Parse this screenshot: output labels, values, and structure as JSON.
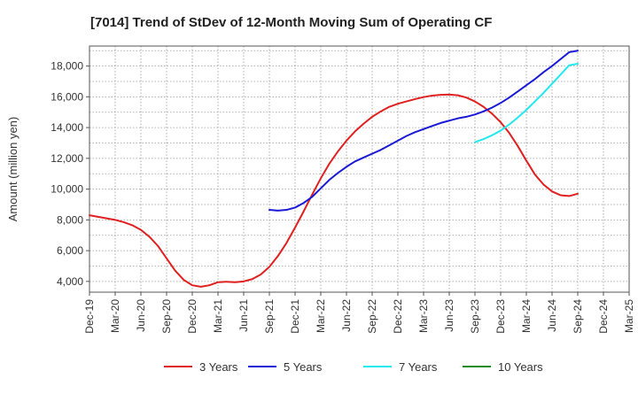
{
  "chart_data": {
    "type": "line",
    "title": "[7014]  Trend of StDev of 12-Month Moving Sum of Operating CF",
    "ylabel": "Amount (million yen)",
    "xlabel": "",
    "ylim": [
      3300,
      19300
    ],
    "yticks": [
      4000,
      6000,
      8000,
      10000,
      12000,
      14000,
      16000,
      18000
    ],
    "ytick_labels": [
      "4,000",
      "6,000",
      "8,000",
      "10,000",
      "12,000",
      "14,000",
      "16,000",
      "18,000"
    ],
    "xticks": [
      "Dec-19",
      "Mar-20",
      "Jun-20",
      "Sep-20",
      "Dec-20",
      "Mar-21",
      "Jun-21",
      "Sep-21",
      "Dec-21",
      "Mar-22",
      "Jun-22",
      "Sep-22",
      "Dec-22",
      "Mar-23",
      "Jun-23",
      "Sep-23",
      "Dec-23",
      "Mar-24",
      "Jun-24",
      "Sep-24",
      "Dec-24",
      "Mar-25"
    ],
    "x_end_label": "Mar-25",
    "grid": true,
    "legend_position": "bottom",
    "series": [
      {
        "name": "3 Years",
        "color": "#e02020",
        "points": [
          [
            "Dec-19",
            8300
          ],
          [
            "Jan-20",
            8200
          ],
          [
            "Feb-20",
            8100
          ],
          [
            "Mar-20",
            8000
          ],
          [
            "Apr-20",
            7850
          ],
          [
            "May-20",
            7650
          ],
          [
            "Jun-20",
            7350
          ],
          [
            "Jul-20",
            6900
          ],
          [
            "Aug-20",
            6300
          ],
          [
            "Sep-20",
            5500
          ],
          [
            "Oct-20",
            4700
          ],
          [
            "Nov-20",
            4100
          ],
          [
            "Dec-20",
            3750
          ],
          [
            "Jan-21",
            3650
          ],
          [
            "Feb-21",
            3750
          ],
          [
            "Mar-21",
            3950
          ],
          [
            "Apr-21",
            3980
          ],
          [
            "May-21",
            3950
          ],
          [
            "Jun-21",
            4000
          ],
          [
            "Jul-21",
            4150
          ],
          [
            "Aug-21",
            4450
          ],
          [
            "Sep-21",
            4950
          ],
          [
            "Oct-21",
            5650
          ],
          [
            "Nov-21",
            6500
          ],
          [
            "Dec-21",
            7500
          ],
          [
            "Jan-22",
            8550
          ],
          [
            "Feb-22",
            9650
          ],
          [
            "Mar-22",
            10700
          ],
          [
            "Apr-22",
            11650
          ],
          [
            "May-22",
            12450
          ],
          [
            "Jun-22",
            13150
          ],
          [
            "Jul-22",
            13750
          ],
          [
            "Aug-22",
            14250
          ],
          [
            "Sep-22",
            14700
          ],
          [
            "Oct-22",
            15050
          ],
          [
            "Nov-22",
            15350
          ],
          [
            "Dec-22",
            15550
          ],
          [
            "Jan-23",
            15700
          ],
          [
            "Feb-23",
            15850
          ],
          [
            "Mar-23",
            15980
          ],
          [
            "Apr-23",
            16080
          ],
          [
            "May-23",
            16130
          ],
          [
            "Jun-23",
            16150
          ],
          [
            "Jul-23",
            16100
          ],
          [
            "Aug-23",
            15950
          ],
          [
            "Sep-23",
            15700
          ],
          [
            "Oct-23",
            15350
          ],
          [
            "Nov-23",
            14900
          ],
          [
            "Dec-23",
            14350
          ],
          [
            "Jan-24",
            13650
          ],
          [
            "Feb-24",
            12800
          ],
          [
            "Mar-24",
            11850
          ],
          [
            "Apr-24",
            10950
          ],
          [
            "May-24",
            10300
          ],
          [
            "Jun-24",
            9850
          ],
          [
            "Jul-24",
            9600
          ],
          [
            "Aug-24",
            9550
          ],
          [
            "Sep-24",
            9700
          ]
        ]
      },
      {
        "name": "5 Years",
        "color": "#1a1ad6",
        "points": [
          [
            "Sep-21",
            8650
          ],
          [
            "Oct-21",
            8600
          ],
          [
            "Nov-21",
            8650
          ],
          [
            "Dec-21",
            8800
          ],
          [
            "Jan-22",
            9100
          ],
          [
            "Feb-22",
            9500
          ],
          [
            "Mar-22",
            10050
          ],
          [
            "Apr-22",
            10600
          ],
          [
            "May-22",
            11050
          ],
          [
            "Jun-22",
            11450
          ],
          [
            "Jul-22",
            11800
          ],
          [
            "Aug-22",
            12050
          ],
          [
            "Sep-22",
            12300
          ],
          [
            "Oct-22",
            12550
          ],
          [
            "Nov-22",
            12850
          ],
          [
            "Dec-22",
            13150
          ],
          [
            "Jan-23",
            13450
          ],
          [
            "Feb-23",
            13700
          ],
          [
            "Mar-23",
            13900
          ],
          [
            "Apr-23",
            14100
          ],
          [
            "May-23",
            14300
          ],
          [
            "Jun-23",
            14450
          ],
          [
            "Jul-23",
            14600
          ],
          [
            "Aug-23",
            14700
          ],
          [
            "Sep-23",
            14850
          ],
          [
            "Oct-23",
            15050
          ],
          [
            "Nov-23",
            15300
          ],
          [
            "Dec-23",
            15600
          ],
          [
            "Jan-24",
            15950
          ],
          [
            "Feb-24",
            16350
          ],
          [
            "Mar-24",
            16750
          ],
          [
            "Apr-24",
            17150
          ],
          [
            "May-24",
            17600
          ],
          [
            "Jun-24",
            18000
          ],
          [
            "Jul-24",
            18450
          ],
          [
            "Aug-24",
            18900
          ],
          [
            "Sep-24",
            19000
          ]
        ]
      },
      {
        "name": "7 Years",
        "color": "#22e8f0",
        "points": [
          [
            "Sep-23",
            13050
          ],
          [
            "Oct-23",
            13250
          ],
          [
            "Nov-23",
            13500
          ],
          [
            "Dec-23",
            13800
          ],
          [
            "Jan-24",
            14200
          ],
          [
            "Feb-24",
            14650
          ],
          [
            "Mar-24",
            15150
          ],
          [
            "Apr-24",
            15700
          ],
          [
            "May-24",
            16250
          ],
          [
            "Jun-24",
            16850
          ],
          [
            "Jul-24",
            17450
          ],
          [
            "Aug-24",
            18050
          ],
          [
            "Sep-24",
            18150
          ]
        ]
      },
      {
        "name": "10 Years",
        "color": "#1f8a1f",
        "points": []
      }
    ]
  }
}
